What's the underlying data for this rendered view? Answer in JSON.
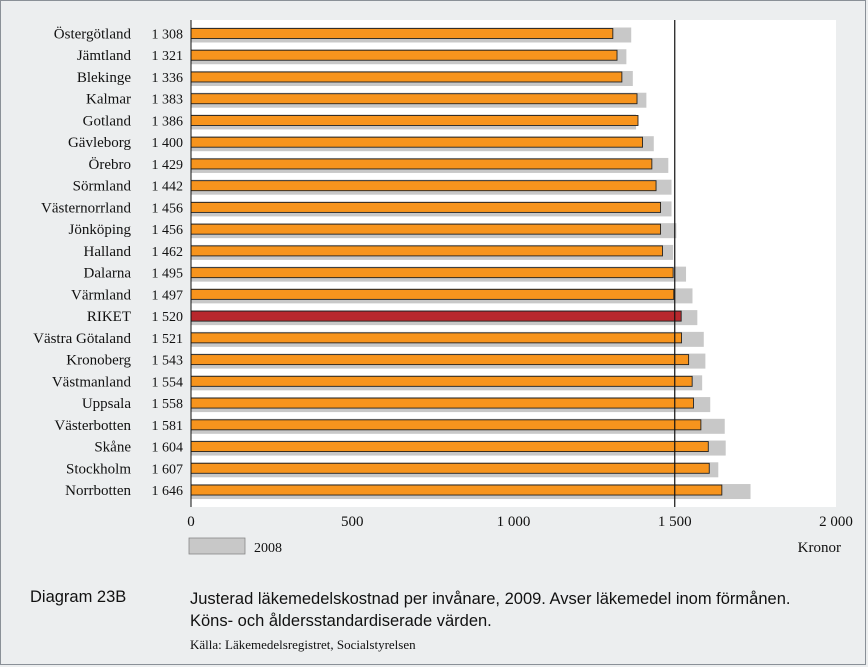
{
  "chart_data": {
    "type": "bar",
    "orientation": "horizontal",
    "categories": [
      "Östergötland",
      "Jämtland",
      "Blekinge",
      "Kalmar",
      "Gotland",
      "Gävleborg",
      "Örebro",
      "Sörmland",
      "Västernorrland",
      "Jönköping",
      "Halland",
      "Dalarna",
      "Värmland",
      "RIKET",
      "Västra Götaland",
      "Kronoberg",
      "Västmanland",
      "Uppsala",
      "Västerbotten",
      "Skåne",
      "Stockholm",
      "Norrbotten"
    ],
    "value_labels": [
      "1 308",
      "1 321",
      "1 336",
      "1 383",
      "1 386",
      "1 400",
      "1 429",
      "1 442",
      "1 456",
      "1 456",
      "1 462",
      "1 495",
      "1 497",
      "1 520",
      "1 521",
      "1 543",
      "1 554",
      "1 558",
      "1 581",
      "1 604",
      "1 607",
      "1 646"
    ],
    "series": [
      {
        "values": [
          1308,
          1321,
          1336,
          1383,
          1386,
          1400,
          1429,
          1442,
          1456,
          1456,
          1462,
          1495,
          1497,
          1520,
          1521,
          1543,
          1554,
          1558,
          1581,
          1604,
          1607,
          1646
        ],
        "color": "#f7941d",
        "highlight_index": 13,
        "highlight_color": "#b8282d"
      },
      {
        "name": "2008",
        "values": [
          1365,
          1350,
          1370,
          1412,
          1380,
          1435,
          1480,
          1490,
          1490,
          1505,
          1495,
          1535,
          1555,
          1570,
          1590,
          1595,
          1585,
          1610,
          1655,
          1658,
          1635,
          1735
        ],
        "color": "#c8c8c8"
      }
    ],
    "xticks": [
      "0",
      "500",
      "1 000",
      "1 500",
      "2 000"
    ],
    "xlim": [
      0,
      2000
    ],
    "reference_line": 1500,
    "xlabel": "Kronor",
    "legend": {
      "label": "2008",
      "placement": "bottom-left"
    }
  },
  "caption": {
    "title": "Diagram 23B",
    "text": "Justerad läkemedelskostnad per invånare, 2009. Avser läkemedel inom förmånen. Köns- och åldersstandardiserade värden.",
    "source": "Källa: Läkemedelsregistret, Socialstyrelsen"
  }
}
